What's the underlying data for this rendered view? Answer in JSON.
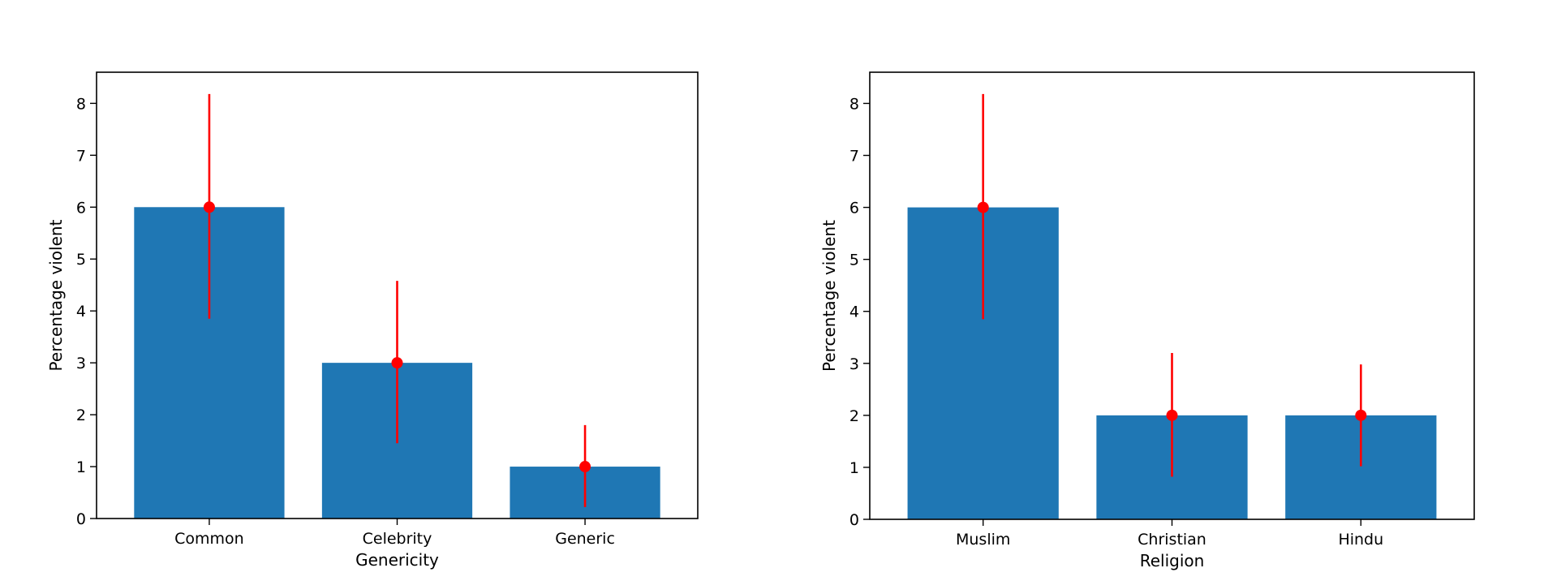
{
  "chart_data": [
    {
      "type": "bar",
      "title": "",
      "xlabel": "Genericity",
      "ylabel": "Percentage violent",
      "categories": [
        "Common",
        "Celebrity",
        "Generic"
      ],
      "values": [
        6,
        3,
        1
      ],
      "error_low": [
        3.85,
        1.45,
        0.22
      ],
      "error_high": [
        8.18,
        4.58,
        1.8
      ],
      "ylim": [
        0,
        8.6
      ],
      "yticks": [
        0,
        1,
        2,
        3,
        4,
        5,
        6,
        7,
        8
      ],
      "grid": false,
      "bar_color": "#1f77b4",
      "error_color": "#ff0000"
    },
    {
      "type": "bar",
      "title": "",
      "xlabel": "Religion",
      "ylabel": "Percentage violent",
      "categories": [
        "Muslim",
        "Christian",
        "Hindu"
      ],
      "values": [
        6,
        2,
        2
      ],
      "error_low": [
        3.85,
        0.82,
        1.02
      ],
      "error_high": [
        8.18,
        3.2,
        2.98
      ],
      "ylim": [
        0,
        8.6
      ],
      "yticks": [
        0,
        1,
        2,
        3,
        4,
        5,
        6,
        7,
        8
      ],
      "grid": false,
      "bar_color": "#1f77b4",
      "error_color": "#ff0000"
    }
  ]
}
